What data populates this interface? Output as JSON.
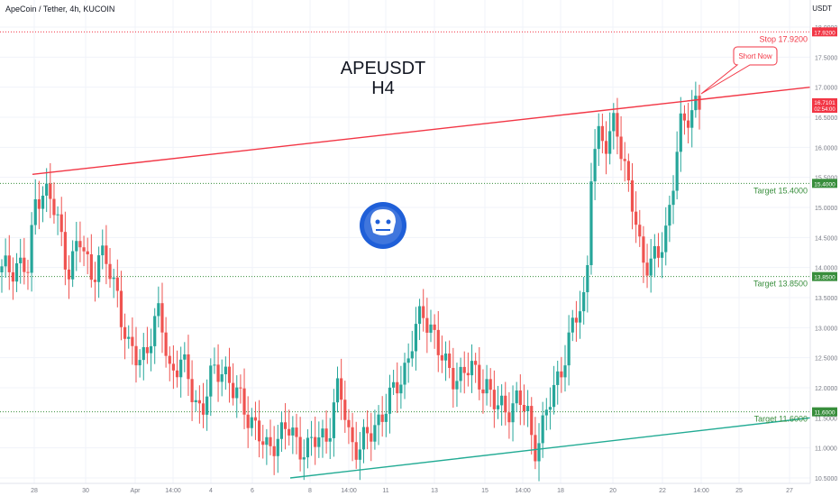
{
  "header": {
    "symbol_line": "ApeCoin / Tether, 4h, KUCOIN",
    "currency": "USDT"
  },
  "title": {
    "line1": "APEUSDT",
    "line2": "H4"
  },
  "colors": {
    "up": "#26a69a",
    "down": "#ef5350",
    "resistance": "#f23645",
    "support": "#22ab94",
    "stop": "#f23645",
    "target": "#388e3c",
    "grid": "#f0f3fa",
    "axis_text": "#787b86",
    "price_tag": "#f23645",
    "logo_bg": "#1f5fd8"
  },
  "chart_data": {
    "type": "candlestick",
    "timeframe": "4h",
    "y_range": [
      10.45,
      18.05
    ],
    "bar_count": 188,
    "x_ticks": [
      "28",
      "30",
      "Apr",
      "14:00",
      "4",
      "6",
      "8",
      "14:00",
      "11",
      "13",
      "15",
      "14:00",
      "18",
      "20",
      "22",
      "14:00",
      "25",
      "27"
    ],
    "y_ticks": [
      "18.0000",
      "17.5000",
      "17.0000",
      "16.5000",
      "16.0000",
      "15.5000",
      "15.0000",
      "14.5000",
      "14.0000",
      "13.5000",
      "13.0000",
      "12.5000",
      "12.0000",
      "11.5000",
      "11.0000",
      "10.5000"
    ],
    "close_path": [
      [
        0,
        13.9
      ],
      [
        6,
        14.1
      ],
      [
        10,
        13.9
      ],
      [
        13,
        15.2
      ],
      [
        16,
        15.35
      ],
      [
        21,
        14.8
      ],
      [
        25,
        14.0
      ],
      [
        30,
        14.4
      ],
      [
        34,
        13.9
      ],
      [
        37,
        14.2
      ],
      [
        40,
        14.0
      ],
      [
        44,
        13.6
      ],
      [
        48,
        12.6
      ],
      [
        52,
        12.45
      ],
      [
        56,
        12.8
      ],
      [
        60,
        13.2
      ],
      [
        64,
        12.3
      ],
      [
        68,
        12.4
      ],
      [
        72,
        12.0
      ],
      [
        76,
        11.6
      ],
      [
        80,
        12.2
      ],
      [
        84,
        12.4
      ],
      [
        88,
        11.9
      ],
      [
        92,
        11.7
      ],
      [
        96,
        11.4
      ],
      [
        100,
        10.9
      ],
      [
        104,
        11.2
      ],
      [
        108,
        11.3
      ],
      [
        112,
        11.1
      ],
      [
        116,
        11.0
      ],
      [
        120,
        11.1
      ],
      [
        124,
        11.3
      ],
      [
        128,
        12.0
      ],
      [
        132,
        11.2
      ],
      [
        136,
        11.0
      ],
      [
        140,
        11.2
      ],
      [
        144,
        11.6
      ],
      [
        148,
        11.8
      ],
      [
        152,
        12.2
      ],
      [
        156,
        12.8
      ],
      [
        160,
        13.2
      ],
      [
        164,
        13.0
      ],
      [
        168,
        12.3
      ],
      [
        172,
        12.2
      ],
      [
        176,
        12.3
      ],
      [
        180,
        12.2
      ],
      [
        184,
        12.1
      ],
      [
        188,
        11.6
      ],
      [
        192,
        11.7
      ],
      [
        196,
        11.8
      ],
      [
        200,
        11.5
      ],
      [
        202,
        11.0
      ],
      [
        206,
        11.4
      ],
      [
        210,
        12.0
      ],
      [
        214,
        12.6
      ],
      [
        218,
        13.1
      ],
      [
        222,
        13.6
      ],
      [
        224,
        15.8
      ],
      [
        227,
        16.1
      ],
      [
        230,
        16.0
      ],
      [
        233,
        16.7
      ],
      [
        236,
        15.6
      ],
      [
        240,
        15.0
      ],
      [
        243,
        14.3
      ],
      [
        246,
        13.9
      ],
      [
        249,
        14.2
      ],
      [
        252,
        14.6
      ],
      [
        255,
        15.4
      ],
      [
        258,
        16.3
      ],
      [
        261,
        16.6
      ],
      [
        264,
        16.8
      ],
      [
        265,
        16.7
      ]
    ],
    "levels": [
      {
        "label": "Stop 17.9200",
        "value": 17.92,
        "style": "dotted",
        "color": "red"
      },
      {
        "label": "Target 15.4000",
        "value": 15.4,
        "style": "dotted",
        "color": "green"
      },
      {
        "label": "Target 13.8500",
        "value": 13.85,
        "style": "dotted",
        "color": "green"
      },
      {
        "label": "Target 11.6000",
        "value": 11.6,
        "style": "dotted",
        "color": "green"
      }
    ],
    "trendlines": [
      {
        "name": "resistance",
        "color": "red",
        "from": [
          "bar 4",
          15.55
        ],
        "to": [
          "right edge",
          17.0
        ]
      },
      {
        "name": "support",
        "color": "green",
        "from": [
          "bar 103",
          10.5
        ],
        "to": [
          "right edge",
          11.6
        ]
      }
    ],
    "price_tag": {
      "price": "16.7101",
      "countdown": "02:54:00"
    },
    "annotation": "Short Now",
    "scale_tags": [
      "17.9200",
      "15.4000",
      "13.8500",
      "11.6000"
    ]
  }
}
